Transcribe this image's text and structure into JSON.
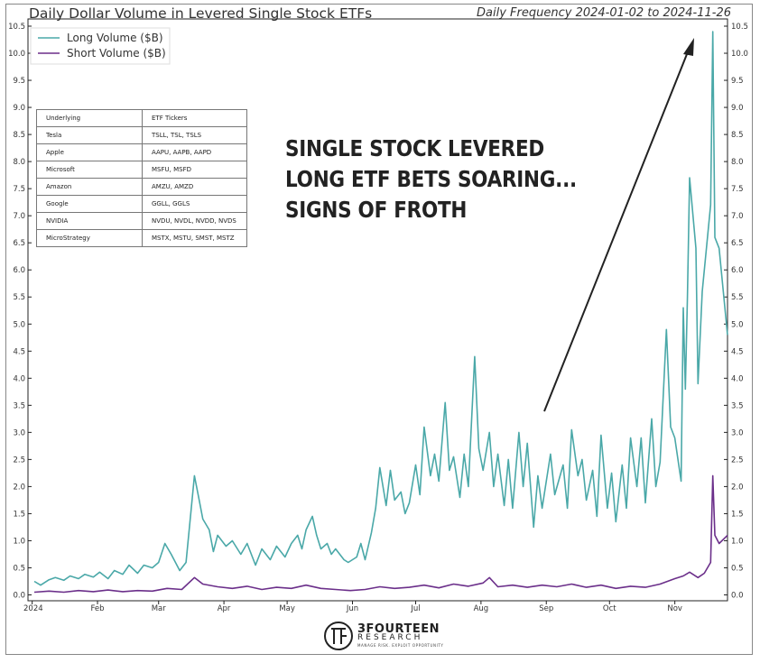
{
  "chart_data": {
    "type": "line",
    "title": "Daily Dollar Volume in Levered Single Stock ETFs",
    "subtitle": "Daily Frequency 2024-01-02 to 2024-11-26",
    "xlabel": "",
    "ylabel": "",
    "x_range": [
      "2024-01-02",
      "2024-11-26"
    ],
    "ylim": [
      0,
      10.5
    ],
    "y_ticks": [
      "0.0",
      "0.5",
      "1.0",
      "1.5",
      "2.0",
      "2.5",
      "3.0",
      "3.5",
      "4.0",
      "4.5",
      "5.0",
      "5.5",
      "6.0",
      "6.5",
      "7.0",
      "7.5",
      "8.0",
      "8.5",
      "9.0",
      "9.5",
      "10.0",
      "10.5"
    ],
    "x_ticks": [
      {
        "label": "2024",
        "date": "2024-01-01"
      },
      {
        "label": "Feb",
        "date": "2024-02-01"
      },
      {
        "label": "Mar",
        "date": "2024-03-01"
      },
      {
        "label": "Apr",
        "date": "2024-04-01"
      },
      {
        "label": "May",
        "date": "2024-05-01"
      },
      {
        "label": "Jun",
        "date": "2024-06-01"
      },
      {
        "label": "Jul",
        "date": "2024-07-01"
      },
      {
        "label": "Aug",
        "date": "2024-08-01"
      },
      {
        "label": "Sep",
        "date": "2024-09-01"
      },
      {
        "label": "Oct",
        "date": "2024-10-01"
      },
      {
        "label": "Nov",
        "date": "2024-11-01"
      }
    ],
    "grid": false,
    "legend_position": "top-left",
    "series": [
      {
        "name": "Long Volume ($B)",
        "color": "#4aa8a8",
        "points": [
          [
            "2024-01-02",
            0.25
          ],
          [
            "2024-01-05",
            0.18
          ],
          [
            "2024-01-09",
            0.28
          ],
          [
            "2024-01-12",
            0.32
          ],
          [
            "2024-01-16",
            0.27
          ],
          [
            "2024-01-19",
            0.35
          ],
          [
            "2024-01-23",
            0.3
          ],
          [
            "2024-01-26",
            0.38
          ],
          [
            "2024-01-30",
            0.33
          ],
          [
            "2024-02-02",
            0.42
          ],
          [
            "2024-02-06",
            0.3
          ],
          [
            "2024-02-09",
            0.45
          ],
          [
            "2024-02-13",
            0.38
          ],
          [
            "2024-02-16",
            0.55
          ],
          [
            "2024-02-20",
            0.4
          ],
          [
            "2024-02-23",
            0.55
          ],
          [
            "2024-02-27",
            0.5
          ],
          [
            "2024-03-01",
            0.6
          ],
          [
            "2024-03-04",
            0.95
          ],
          [
            "2024-03-07",
            0.75
          ],
          [
            "2024-03-11",
            0.45
          ],
          [
            "2024-03-14",
            0.6
          ],
          [
            "2024-03-18",
            2.2
          ],
          [
            "2024-03-20",
            1.8
          ],
          [
            "2024-03-22",
            1.4
          ],
          [
            "2024-03-25",
            1.2
          ],
          [
            "2024-03-27",
            0.8
          ],
          [
            "2024-03-29",
            1.1
          ],
          [
            "2024-04-02",
            0.9
          ],
          [
            "2024-04-05",
            1.0
          ],
          [
            "2024-04-09",
            0.75
          ],
          [
            "2024-04-12",
            0.95
          ],
          [
            "2024-04-16",
            0.55
          ],
          [
            "2024-04-19",
            0.85
          ],
          [
            "2024-04-23",
            0.65
          ],
          [
            "2024-04-26",
            0.9
          ],
          [
            "2024-04-30",
            0.7
          ],
          [
            "2024-05-03",
            0.95
          ],
          [
            "2024-05-06",
            1.1
          ],
          [
            "2024-05-08",
            0.85
          ],
          [
            "2024-05-10",
            1.2
          ],
          [
            "2024-05-13",
            1.45
          ],
          [
            "2024-05-15",
            1.1
          ],
          [
            "2024-05-17",
            0.85
          ],
          [
            "2024-05-20",
            0.95
          ],
          [
            "2024-05-22",
            0.75
          ],
          [
            "2024-05-24",
            0.85
          ],
          [
            "2024-05-28",
            0.65
          ],
          [
            "2024-05-30",
            0.6
          ],
          [
            "2024-06-03",
            0.7
          ],
          [
            "2024-06-05",
            0.95
          ],
          [
            "2024-06-07",
            0.65
          ],
          [
            "2024-06-10",
            1.15
          ],
          [
            "2024-06-12",
            1.6
          ],
          [
            "2024-06-14",
            2.35
          ],
          [
            "2024-06-17",
            1.65
          ],
          [
            "2024-06-19",
            2.3
          ],
          [
            "2024-06-21",
            1.75
          ],
          [
            "2024-06-24",
            1.9
          ],
          [
            "2024-06-26",
            1.5
          ],
          [
            "2024-06-28",
            1.7
          ],
          [
            "2024-07-01",
            2.4
          ],
          [
            "2024-07-03",
            1.85
          ],
          [
            "2024-07-05",
            3.1
          ],
          [
            "2024-07-08",
            2.2
          ],
          [
            "2024-07-10",
            2.6
          ],
          [
            "2024-07-12",
            2.1
          ],
          [
            "2024-07-15",
            3.55
          ],
          [
            "2024-07-17",
            2.3
          ],
          [
            "2024-07-19",
            2.55
          ],
          [
            "2024-07-22",
            1.8
          ],
          [
            "2024-07-24",
            2.6
          ],
          [
            "2024-07-26",
            2.0
          ],
          [
            "2024-07-29",
            4.4
          ],
          [
            "2024-07-31",
            2.7
          ],
          [
            "2024-08-02",
            2.3
          ],
          [
            "2024-08-05",
            3.0
          ],
          [
            "2024-08-07",
            2.0
          ],
          [
            "2024-08-09",
            2.6
          ],
          [
            "2024-08-12",
            1.65
          ],
          [
            "2024-08-14",
            2.5
          ],
          [
            "2024-08-16",
            1.6
          ],
          [
            "2024-08-19",
            3.0
          ],
          [
            "2024-08-21",
            2.0
          ],
          [
            "2024-08-23",
            2.8
          ],
          [
            "2024-08-26",
            1.25
          ],
          [
            "2024-08-28",
            2.2
          ],
          [
            "2024-08-30",
            1.6
          ],
          [
            "2024-09-03",
            2.6
          ],
          [
            "2024-09-05",
            1.85
          ],
          [
            "2024-09-09",
            2.4
          ],
          [
            "2024-09-11",
            1.6
          ],
          [
            "2024-09-13",
            3.05
          ],
          [
            "2024-09-16",
            2.2
          ],
          [
            "2024-09-18",
            2.5
          ],
          [
            "2024-09-20",
            1.75
          ],
          [
            "2024-09-23",
            2.3
          ],
          [
            "2024-09-25",
            1.45
          ],
          [
            "2024-09-27",
            2.95
          ],
          [
            "2024-09-30",
            1.6
          ],
          [
            "2024-10-02",
            2.25
          ],
          [
            "2024-10-04",
            1.35
          ],
          [
            "2024-10-07",
            2.4
          ],
          [
            "2024-10-09",
            1.6
          ],
          [
            "2024-10-11",
            2.9
          ],
          [
            "2024-10-14",
            2.0
          ],
          [
            "2024-10-16",
            2.9
          ],
          [
            "2024-10-18",
            1.7
          ],
          [
            "2024-10-21",
            3.25
          ],
          [
            "2024-10-23",
            2.0
          ],
          [
            "2024-10-25",
            2.45
          ],
          [
            "2024-10-28",
            4.9
          ],
          [
            "2024-10-30",
            3.1
          ],
          [
            "2024-11-01",
            2.9
          ],
          [
            "2024-11-04",
            2.1
          ],
          [
            "2024-11-05",
            5.3
          ],
          [
            "2024-11-06",
            3.8
          ],
          [
            "2024-11-07",
            5.5
          ],
          [
            "2024-11-08",
            7.7
          ],
          [
            "2024-11-11",
            6.4
          ],
          [
            "2024-11-12",
            3.9
          ],
          [
            "2024-11-14",
            5.6
          ],
          [
            "2024-11-18",
            7.2
          ],
          [
            "2024-11-19",
            10.4
          ],
          [
            "2024-11-20",
            6.6
          ],
          [
            "2024-11-22",
            6.4
          ],
          [
            "2024-11-26",
            4.8
          ]
        ]
      },
      {
        "name": "Short Volume ($B)",
        "color": "#6b2f8a",
        "points": [
          [
            "2024-01-02",
            0.05
          ],
          [
            "2024-01-09",
            0.07
          ],
          [
            "2024-01-16",
            0.05
          ],
          [
            "2024-01-23",
            0.08
          ],
          [
            "2024-01-30",
            0.06
          ],
          [
            "2024-02-06",
            0.09
          ],
          [
            "2024-02-13",
            0.06
          ],
          [
            "2024-02-20",
            0.08
          ],
          [
            "2024-02-27",
            0.07
          ],
          [
            "2024-03-05",
            0.12
          ],
          [
            "2024-03-12",
            0.1
          ],
          [
            "2024-03-18",
            0.32
          ],
          [
            "2024-03-22",
            0.2
          ],
          [
            "2024-03-29",
            0.15
          ],
          [
            "2024-04-05",
            0.12
          ],
          [
            "2024-04-12",
            0.16
          ],
          [
            "2024-04-19",
            0.1
          ],
          [
            "2024-04-26",
            0.14
          ],
          [
            "2024-05-03",
            0.12
          ],
          [
            "2024-05-10",
            0.18
          ],
          [
            "2024-05-17",
            0.12
          ],
          [
            "2024-05-24",
            0.1
          ],
          [
            "2024-05-31",
            0.08
          ],
          [
            "2024-06-07",
            0.1
          ],
          [
            "2024-06-14",
            0.15
          ],
          [
            "2024-06-21",
            0.12
          ],
          [
            "2024-06-28",
            0.14
          ],
          [
            "2024-07-05",
            0.18
          ],
          [
            "2024-07-12",
            0.13
          ],
          [
            "2024-07-19",
            0.2
          ],
          [
            "2024-07-26",
            0.16
          ],
          [
            "2024-08-02",
            0.22
          ],
          [
            "2024-08-05",
            0.32
          ],
          [
            "2024-08-09",
            0.15
          ],
          [
            "2024-08-16",
            0.18
          ],
          [
            "2024-08-23",
            0.14
          ],
          [
            "2024-08-30",
            0.18
          ],
          [
            "2024-09-06",
            0.15
          ],
          [
            "2024-09-13",
            0.2
          ],
          [
            "2024-09-20",
            0.14
          ],
          [
            "2024-09-27",
            0.18
          ],
          [
            "2024-10-04",
            0.12
          ],
          [
            "2024-10-11",
            0.16
          ],
          [
            "2024-10-18",
            0.14
          ],
          [
            "2024-10-25",
            0.2
          ],
          [
            "2024-11-01",
            0.3
          ],
          [
            "2024-11-05",
            0.35
          ],
          [
            "2024-11-08",
            0.42
          ],
          [
            "2024-11-12",
            0.32
          ],
          [
            "2024-11-15",
            0.4
          ],
          [
            "2024-11-18",
            0.6
          ],
          [
            "2024-11-19",
            2.2
          ],
          [
            "2024-11-20",
            1.1
          ],
          [
            "2024-11-22",
            0.95
          ],
          [
            "2024-11-26",
            1.1
          ]
        ]
      }
    ]
  },
  "ticker_table": {
    "header": [
      "Underlying",
      "ETF Tickers"
    ],
    "rows": [
      [
        "Tesla",
        "TSLL, TSL, TSLS"
      ],
      [
        "Apple",
        "AAPU, AAPB, AAPD"
      ],
      [
        "Microsoft",
        "MSFU, MSFD"
      ],
      [
        "Amazon",
        "AMZU, AMZD"
      ],
      [
        "Google",
        "GGLL, GGLS"
      ],
      [
        "NVIDIA",
        "NVDU, NVDL, NVDD, NVDS"
      ],
      [
        "MicroStrategy",
        "MSTX, MSTU, SMST, MSTZ"
      ]
    ]
  },
  "annotation": {
    "lines": [
      "SINGLE STOCK LEVERED",
      "LONG ETF BETS SOARING...",
      "SIGNS OF FROTH"
    ],
    "color": "#222222"
  },
  "brand": {
    "name": "3FOURTEEN",
    "sub": "RESEARCH",
    "tagline": "MANAGE RISK. EXPLOIT OPPORTUNITY"
  }
}
